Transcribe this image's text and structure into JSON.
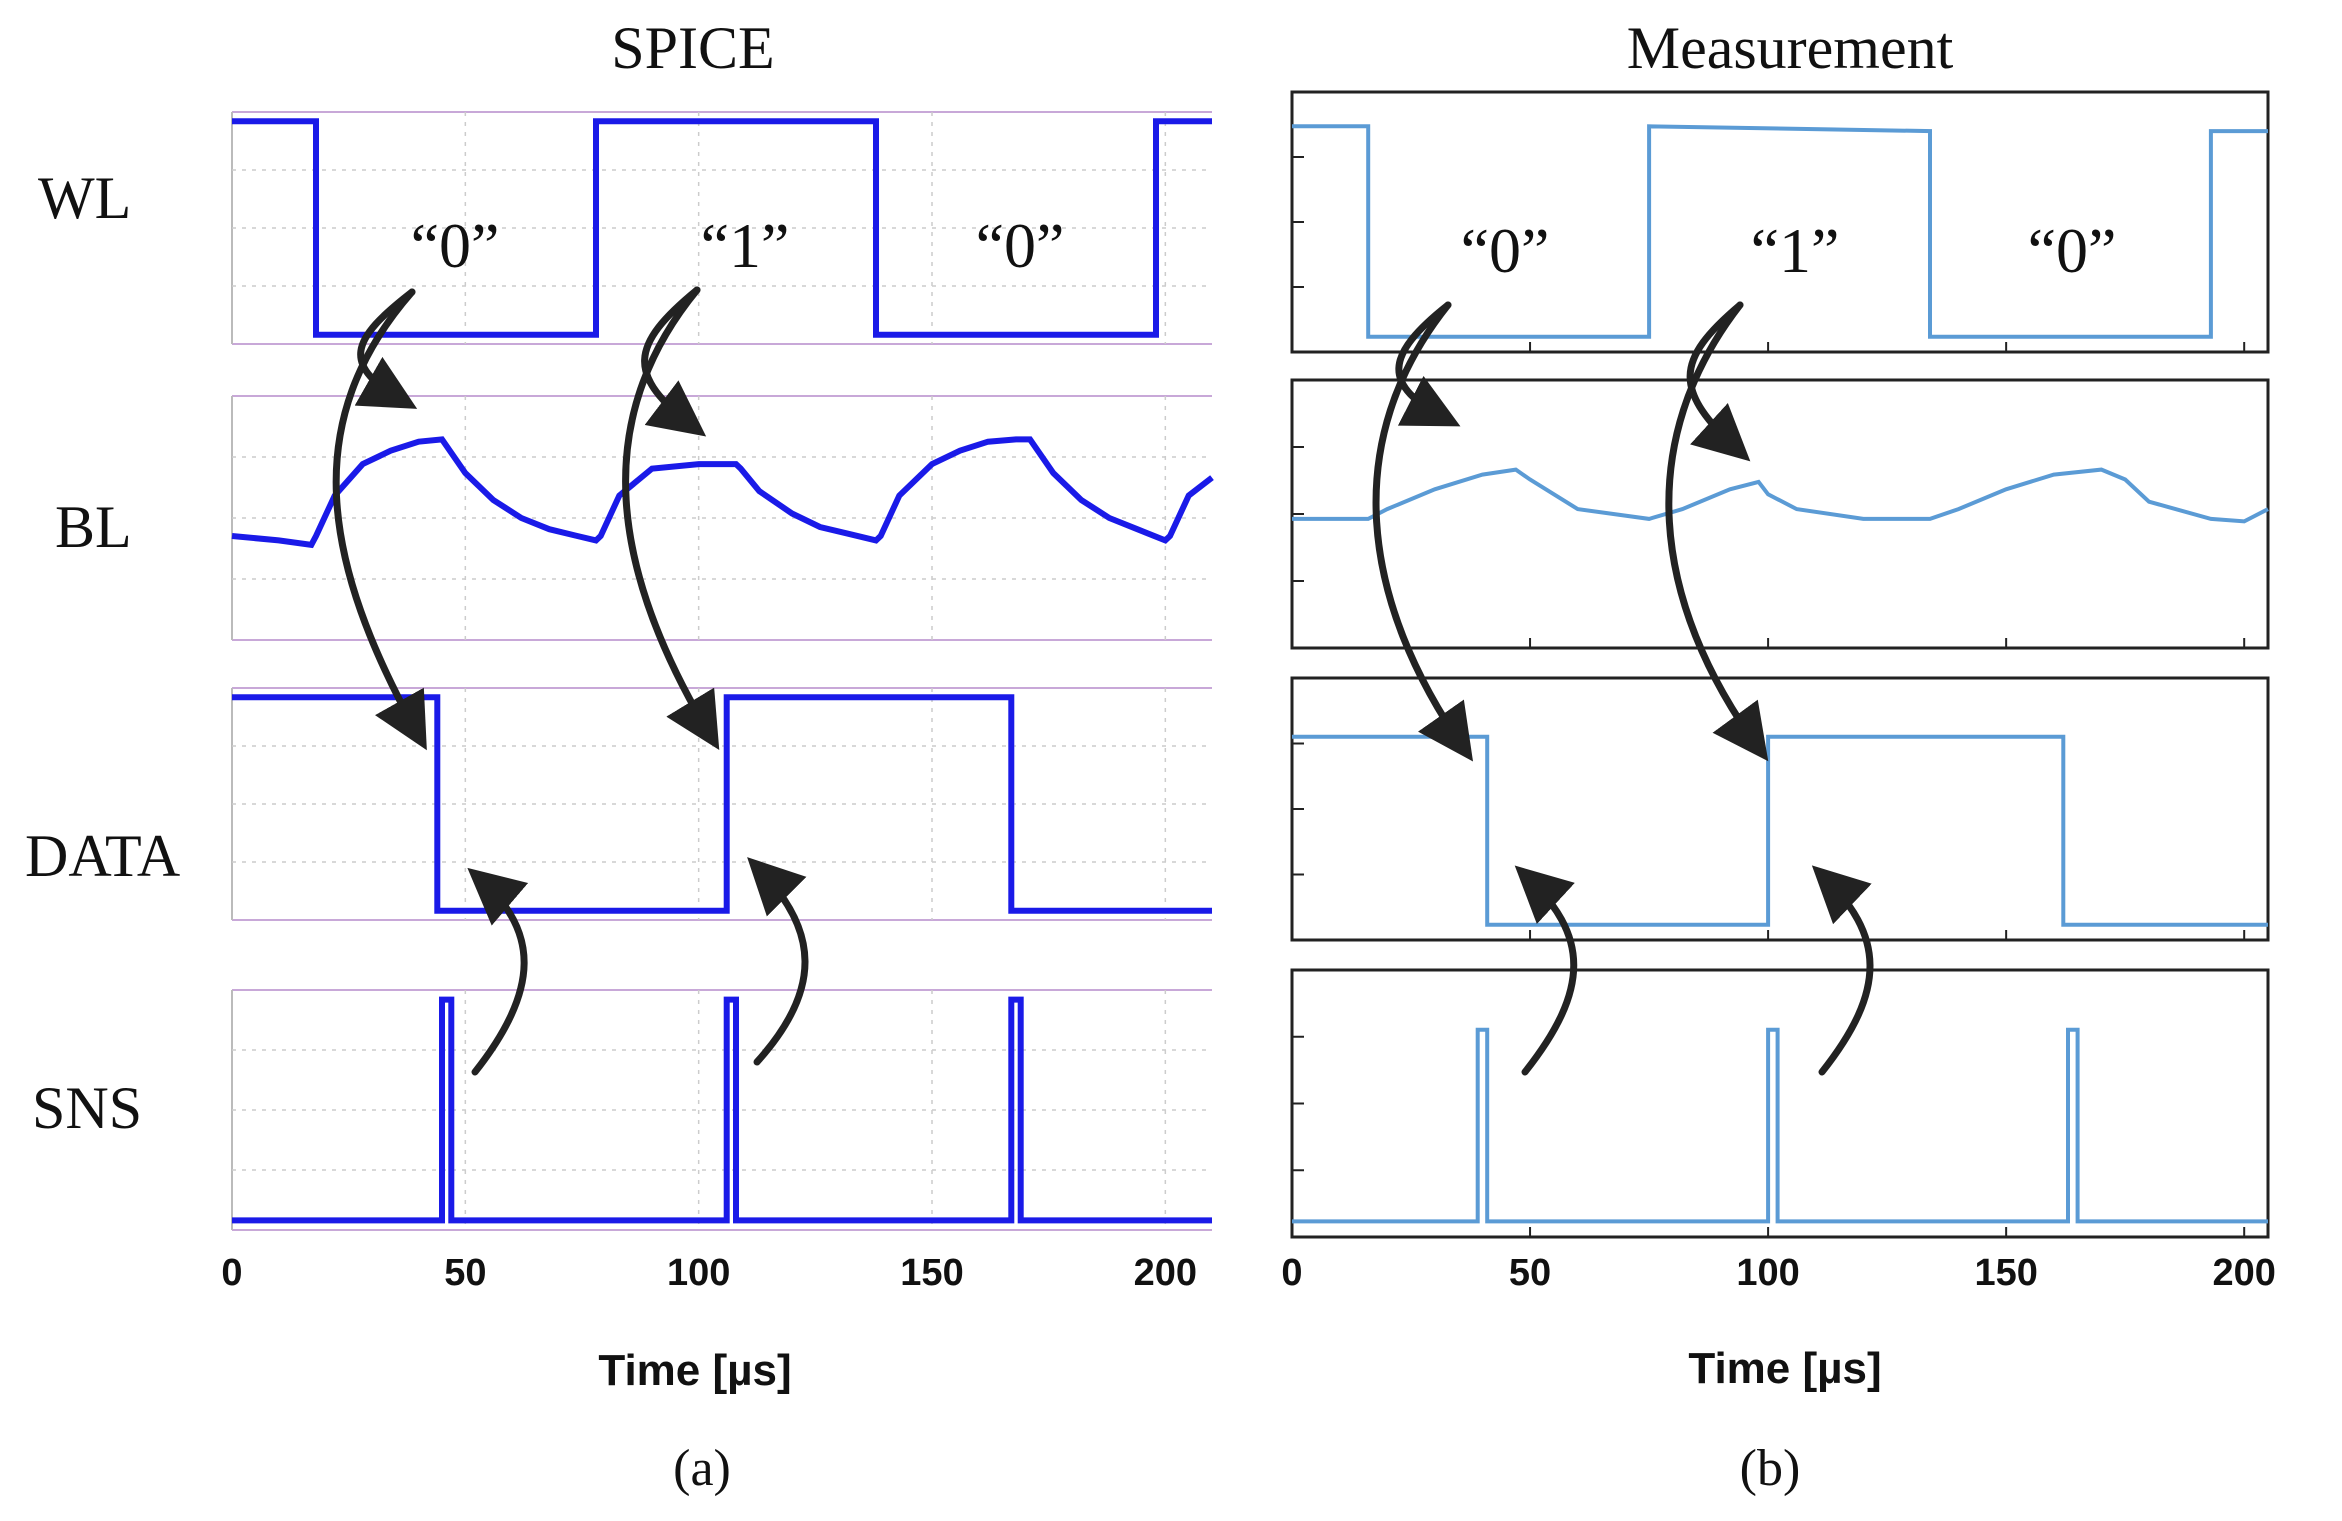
{
  "chart_data": [
    {
      "type": "line",
      "title": "SPICE",
      "caption": "(a)",
      "xlabel": "Time [µs]",
      "xlim": [
        0,
        210
      ],
      "xticks": [
        0,
        50,
        100,
        150,
        200
      ],
      "signals": [
        "WL",
        "BL",
        "DATA",
        "SNS"
      ],
      "bit_labels": [
        "“0”",
        "“1”",
        "“0”"
      ],
      "color": "#1a1ae8",
      "series": [
        {
          "name": "WL",
          "ylim": [
            0,
            1
          ],
          "x": [
            0,
            18,
            18,
            78,
            78,
            138,
            138,
            198,
            198,
            210
          ],
          "y": [
            1,
            1,
            0,
            0,
            1,
            1,
            0,
            0,
            1,
            1
          ]
        },
        {
          "name": "BL",
          "ylim": [
            0,
            1
          ],
          "x": [
            0,
            10,
            17,
            18,
            22,
            28,
            34,
            40,
            45,
            46,
            50,
            56,
            62,
            68,
            74,
            78,
            79,
            83,
            90,
            100,
            106,
            108,
            109,
            113,
            120,
            126,
            132,
            138,
            139,
            143,
            150,
            156,
            162,
            168,
            171,
            172,
            176,
            182,
            188,
            194,
            200,
            201,
            205,
            210
          ],
          "y": [
            0.42,
            0.4,
            0.38,
            0.42,
            0.6,
            0.74,
            0.8,
            0.84,
            0.85,
            0.82,
            0.7,
            0.58,
            0.5,
            0.45,
            0.42,
            0.4,
            0.42,
            0.6,
            0.72,
            0.74,
            0.74,
            0.74,
            0.72,
            0.62,
            0.52,
            0.46,
            0.43,
            0.4,
            0.42,
            0.6,
            0.74,
            0.8,
            0.84,
            0.85,
            0.85,
            0.82,
            0.7,
            0.58,
            0.5,
            0.45,
            0.4,
            0.42,
            0.6,
            0.68
          ]
        },
        {
          "name": "DATA",
          "ylim": [
            0,
            1
          ],
          "x": [
            0,
            44,
            44,
            106,
            106,
            167,
            167,
            210
          ],
          "y": [
            1,
            1,
            0,
            0,
            1,
            1,
            0,
            0
          ]
        },
        {
          "name": "SNS",
          "ylim": [
            0,
            1
          ],
          "x": [
            0,
            45,
            45,
            47,
            47,
            106,
            106,
            108,
            108,
            167,
            167,
            169,
            169,
            210
          ],
          "y": [
            0,
            0,
            1,
            1,
            0,
            0,
            1,
            1,
            0,
            0,
            1,
            1,
            0,
            0
          ]
        }
      ]
    },
    {
      "type": "line",
      "title": "Measurement",
      "caption": "(b)",
      "xlabel": "Time [µs]",
      "xlim": [
        0,
        205
      ],
      "xticks": [
        0,
        50,
        100,
        150,
        200
      ],
      "signals": [
        "WL",
        "BL",
        "DATA",
        "SNS"
      ],
      "bit_labels": [
        "“0”",
        "“1”",
        "“0”"
      ],
      "color": "#5b9bd5",
      "series": [
        {
          "name": "WL",
          "ylim": [
            0,
            1
          ],
          "x": [
            0,
            16,
            16,
            75,
            75,
            134,
            134,
            193,
            193,
            205
          ],
          "y": [
            0.9,
            0.9,
            0.02,
            0.02,
            0.9,
            0.88,
            0.02,
            0.02,
            0.88,
            0.88
          ]
        },
        {
          "name": "BL",
          "ylim": [
            0,
            1
          ],
          "x": [
            0,
            16,
            20,
            30,
            40,
            47,
            50,
            60,
            75,
            82,
            92,
            98,
            100,
            106,
            120,
            134,
            140,
            150,
            160,
            170,
            175,
            180,
            193,
            200,
            205
          ],
          "y": [
            0.48,
            0.48,
            0.52,
            0.6,
            0.66,
            0.68,
            0.64,
            0.52,
            0.48,
            0.52,
            0.6,
            0.63,
            0.58,
            0.52,
            0.48,
            0.48,
            0.52,
            0.6,
            0.66,
            0.68,
            0.64,
            0.55,
            0.48,
            0.47,
            0.52
          ]
        },
        {
          "name": "DATA",
          "ylim": [
            0,
            1
          ],
          "x": [
            0,
            41,
            41,
            100,
            100,
            162,
            162,
            205
          ],
          "y": [
            0.8,
            0.8,
            0.02,
            0.02,
            0.8,
            0.8,
            0.02,
            0.02
          ]
        },
        {
          "name": "SNS",
          "ylim": [
            0,
            1
          ],
          "x": [
            0,
            39,
            39,
            41,
            41,
            100,
            100,
            102,
            102,
            163,
            163,
            165,
            165,
            205
          ],
          "y": [
            0.02,
            0.02,
            0.8,
            0.8,
            0.02,
            0.02,
            0.8,
            0.8,
            0.02,
            0.02,
            0.8,
            0.8,
            0.02,
            0.02
          ]
        }
      ]
    }
  ]
}
